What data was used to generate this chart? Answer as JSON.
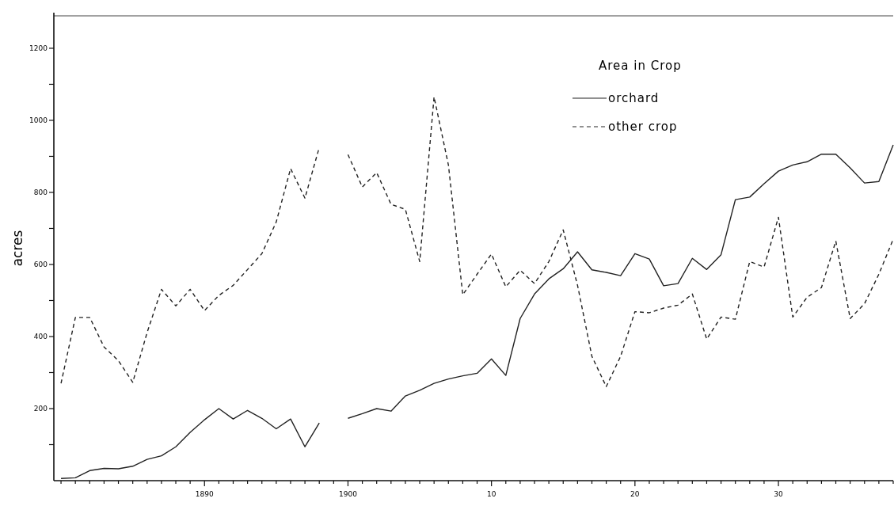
{
  "chart_data": {
    "type": "line",
    "ylabel": "acres",
    "legend_title": "Area in Crop",
    "legend": "top right",
    "grid": false,
    "x": [
      1880,
      1881,
      1882,
      1883,
      1884,
      1885,
      1886,
      1887,
      1888,
      1889,
      1890,
      1891,
      1892,
      1893,
      1894,
      1895,
      1896,
      1897,
      1898,
      1899,
      1900,
      1901,
      1902,
      1903,
      1904,
      1905,
      1906,
      1907,
      1908,
      1909,
      1910,
      1911,
      1912,
      1913,
      1914,
      1915,
      1916,
      1917,
      1918,
      1919,
      1920,
      1921,
      1922,
      1923,
      1924,
      1925,
      1926,
      1927,
      1928,
      1929,
      1930,
      1931,
      1932,
      1933,
      1934,
      1935,
      1936,
      1937,
      1938
    ],
    "xlim": [
      1879.5,
      1938
    ],
    "xticks": [
      {
        "value": 1880,
        "label": null
      },
      {
        "value": 1881,
        "label": null
      },
      {
        "value": 1882,
        "label": null
      },
      {
        "value": 1883,
        "label": null
      },
      {
        "value": 1884,
        "label": null
      },
      {
        "value": 1885,
        "label": null
      },
      {
        "value": 1886,
        "label": null
      },
      {
        "value": 1887,
        "label": null
      },
      {
        "value": 1888,
        "label": null
      },
      {
        "value": 1889,
        "label": null
      },
      1890,
      {
        "value": 1891,
        "label": null
      },
      {
        "value": 1892,
        "label": null
      },
      {
        "value": 1893,
        "label": null
      },
      {
        "value": 1894,
        "label": null
      },
      {
        "value": 1895,
        "label": null
      },
      {
        "value": 1896,
        "label": null
      },
      {
        "value": 1897,
        "label": null
      },
      {
        "value": 1898,
        "label": null
      },
      {
        "value": 1899,
        "label": null
      },
      1900,
      {
        "value": 1901,
        "label": null
      },
      {
        "value": 1902,
        "label": null
      },
      {
        "value": 1903,
        "label": null
      },
      {
        "value": 1904,
        "label": null
      },
      {
        "value": 1905,
        "label": null
      },
      {
        "value": 1906,
        "label": null
      },
      {
        "value": 1907,
        "label": null
      },
      {
        "value": 1908,
        "label": null
      },
      {
        "value": 1909,
        "label": null
      },
      {
        "value": 1910,
        "label": "10"
      },
      {
        "value": 1911,
        "label": null
      },
      {
        "value": 1912,
        "label": null
      },
      {
        "value": 1913,
        "label": null
      },
      {
        "value": 1914,
        "label": null
      },
      {
        "value": 1915,
        "label": null
      },
      {
        "value": 1916,
        "label": null
      },
      {
        "value": 1917,
        "label": null
      },
      {
        "value": 1918,
        "label": null
      },
      {
        "value": 1919,
        "label": null
      },
      {
        "value": 1920,
        "label": "20"
      },
      {
        "value": 1921,
        "label": null
      },
      {
        "value": 1922,
        "label": null
      },
      {
        "value": 1923,
        "label": null
      },
      {
        "value": 1924,
        "label": null
      },
      {
        "value": 1925,
        "label": null
      },
      {
        "value": 1926,
        "label": null
      },
      {
        "value": 1927,
        "label": null
      },
      {
        "value": 1928,
        "label": null
      },
      {
        "value": 1929,
        "label": null
      },
      {
        "value": 1930,
        "label": "30"
      },
      {
        "value": 1931,
        "label": null
      },
      {
        "value": 1932,
        "label": null
      },
      {
        "value": 1933,
        "label": null
      },
      {
        "value": 1934,
        "label": null
      },
      {
        "value": 1935,
        "label": null
      },
      {
        "value": 1936,
        "label": null
      },
      {
        "value": 1937,
        "label": null
      },
      {
        "value": 1938,
        "label": null
      }
    ],
    "ylim": [
      0,
      1290
    ],
    "yticks": [
      {
        "value": 100,
        "label": null
      },
      200,
      {
        "value": 300,
        "label": null
      },
      400,
      {
        "value": 500,
        "label": null
      },
      600,
      {
        "value": 700,
        "label": null
      },
      800,
      {
        "value": 900,
        "label": null
      },
      1000,
      {
        "value": 1100,
        "label": null
      },
      1200
    ],
    "series": [
      {
        "name": "orchard",
        "color": "#222222",
        "line_style": "solid",
        "values": [
          6,
          8,
          28,
          34,
          33,
          40,
          59,
          69,
          94,
          134,
          169,
          200,
          171,
          195,
          173,
          144,
          171,
          94,
          160,
          null,
          173,
          186,
          200,
          193,
          235,
          251,
          270,
          282,
          291,
          298,
          338,
          292,
          450,
          518,
          560,
          588,
          635,
          585,
          578,
          569,
          630,
          615,
          541,
          547,
          617,
          586,
          627,
          780,
          787,
          824,
          859,
          876,
          885,
          906,
          906,
          868,
          826,
          830,
          932
        ]
      },
      {
        "name": "other crop",
        "color": "#222222",
        "line_style": "dashed",
        "values": [
          270,
          453,
          453,
          371,
          333,
          273,
          411,
          531,
          485,
          531,
          472,
          514,
          542,
          586,
          630,
          718,
          866,
          784,
          925,
          null,
          905,
          815,
          855,
          767,
          753,
          608,
          1065,
          876,
          516,
          573,
          629,
          538,
          584,
          547,
          608,
          696,
          542,
          345,
          261,
          345,
          469,
          466,
          479,
          487,
          518,
          393,
          454,
          448,
          608,
          593,
          731,
          454,
          509,
          536,
          665,
          450,
          491,
          573,
          670
        ]
      }
    ]
  }
}
